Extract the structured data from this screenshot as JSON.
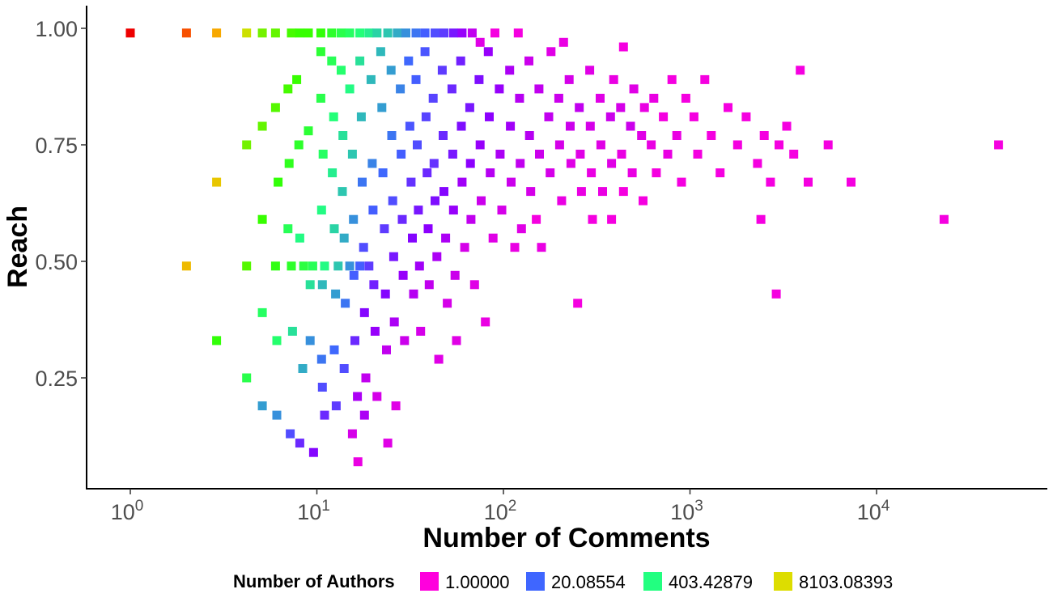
{
  "chart_data": {
    "type": "heatmap",
    "title": "",
    "xlabel": "Number of Comments",
    "ylabel": "Reach",
    "x_scale": "log10",
    "x_ticks": [
      1,
      10,
      100,
      1000,
      10000
    ],
    "x_tick_labels": [
      {
        "base": "10",
        "exp": "0"
      },
      {
        "base": "10",
        "exp": "1"
      },
      {
        "base": "10",
        "exp": "2"
      },
      {
        "base": "10",
        "exp": "3"
      },
      {
        "base": "10",
        "exp": "4"
      }
    ],
    "xlim": [
      0.6,
      90000
    ],
    "y_ticks": [
      0.25,
      0.5,
      0.75,
      1.0
    ],
    "y_tick_labels": [
      "0.25",
      "0.50",
      "0.75",
      "1.00"
    ],
    "ylim": [
      0.015,
      1.045
    ],
    "grid": false,
    "legend": {
      "title": "Number of Authors",
      "position": "bottom",
      "entries": [
        {
          "label": "1.00000",
          "color": "#ff00dd"
        },
        {
          "label": "20.08554",
          "color": "#3f66ff"
        },
        {
          "label": "403.42879",
          "color": "#22ff80"
        },
        {
          "label": "8103.08393",
          "color": "#dddd00"
        }
      ]
    },
    "color_ramp": [
      "#ff00dd",
      "#8800ff",
      "#3f66ff",
      "#22ff80",
      "#33ff00",
      "#dddd00",
      "#ff9900",
      "#ee0000"
    ],
    "bin_scale": "log(authors) 0-8",
    "bins": [
      [
        1,
        0.99,
        8.0
      ],
      [
        2,
        0.99,
        7.4
      ],
      [
        2.9,
        0.99,
        6.6
      ],
      [
        4.2,
        0.99,
        5.6
      ],
      [
        5.1,
        0.99,
        5.0
      ],
      [
        6,
        0.99,
        4.9
      ],
      [
        7.3,
        0.99,
        4.7
      ],
      [
        8.1,
        0.99,
        4.6
      ],
      [
        9,
        0.99,
        4.6
      ],
      [
        10.5,
        0.99,
        4.5
      ],
      [
        12,
        0.99,
        4.2
      ],
      [
        13.5,
        0.99,
        3.9
      ],
      [
        15,
        0.99,
        3.7
      ],
      [
        17,
        0.99,
        3.5
      ],
      [
        19,
        0.99,
        3.3
      ],
      [
        21,
        0.99,
        3.1
      ],
      [
        24,
        0.99,
        3.0
      ],
      [
        27,
        0.99,
        2.8
      ],
      [
        30,
        0.99,
        2.6
      ],
      [
        34,
        0.99,
        2.4
      ],
      [
        38,
        0.99,
        2.2
      ],
      [
        43,
        0.99,
        2.0
      ],
      [
        48,
        0.99,
        1.8
      ],
      [
        54,
        0.99,
        1.4
      ],
      [
        60,
        0.99,
        1.0
      ],
      [
        68,
        0.99,
        0.6
      ],
      [
        75,
        0.97,
        0.3
      ],
      [
        90,
        0.99,
        0.1
      ],
      [
        120,
        0.99,
        0.1
      ],
      [
        210,
        0.97,
        0.2
      ],
      [
        440,
        0.96,
        0.1
      ],
      [
        4.2,
        0.49,
        4.8
      ],
      [
        6,
        0.49,
        4.4
      ],
      [
        7.3,
        0.49,
        4.2
      ],
      [
        8.5,
        0.49,
        4.0
      ],
      [
        9.5,
        0.49,
        3.8
      ],
      [
        11,
        0.49,
        3.4
      ],
      [
        13,
        0.49,
        3.0
      ],
      [
        15,
        0.49,
        2.6
      ],
      [
        17,
        0.49,
        2.2
      ],
      [
        19,
        0.49,
        1.8
      ],
      [
        2,
        0.49,
        6.3
      ],
      [
        2.9,
        0.67,
        6.1
      ],
      [
        2.9,
        0.33,
        4.5
      ],
      [
        4.2,
        0.25,
        3.9
      ],
      [
        4.2,
        0.75,
        5.0
      ],
      [
        5.1,
        0.79,
        4.9
      ],
      [
        5.1,
        0.59,
        4.6
      ],
      [
        5.1,
        0.39,
        3.7
      ],
      [
        5.1,
        0.19,
        2.7
      ],
      [
        6,
        0.83,
        4.8
      ],
      [
        6.2,
        0.67,
        4.5
      ],
      [
        6.1,
        0.33,
        3.6
      ],
      [
        6.1,
        0.17,
        2.6
      ],
      [
        7,
        0.87,
        4.7
      ],
      [
        7.1,
        0.71,
        4.3
      ],
      [
        7,
        0.57,
        3.8
      ],
      [
        7.4,
        0.35,
        3.2
      ],
      [
        7.2,
        0.13,
        2.0
      ],
      [
        7.8,
        0.89,
        4.6
      ],
      [
        8,
        0.75,
        4.2
      ],
      [
        8.1,
        0.55,
        3.4
      ],
      [
        8.4,
        0.27,
        2.8
      ],
      [
        8.1,
        0.11,
        1.6
      ],
      [
        9,
        0.78,
        4.1
      ],
      [
        9.2,
        0.45,
        3.2
      ],
      [
        9.2,
        0.33,
        2.6
      ],
      [
        9.6,
        0.09,
        1.2
      ],
      [
        10.5,
        0.95,
        4.1
      ],
      [
        10.5,
        0.85,
        3.9
      ],
      [
        10.8,
        0.73,
        3.7
      ],
      [
        10.6,
        0.61,
        3.4
      ],
      [
        10.7,
        0.45,
        2.9
      ],
      [
        10.6,
        0.29,
        2.4
      ],
      [
        10.7,
        0.23,
        2.0
      ],
      [
        11,
        0.17,
        1.6
      ],
      [
        12,
        0.93,
        3.8
      ],
      [
        12.3,
        0.81,
        3.5
      ],
      [
        12.1,
        0.69,
        3.3
      ],
      [
        12.4,
        0.57,
        3.1
      ],
      [
        12.6,
        0.43,
        2.7
      ],
      [
        12.4,
        0.31,
        2.3
      ],
      [
        12.7,
        0.19,
        1.8
      ],
      [
        13.5,
        0.91,
        3.6
      ],
      [
        13.8,
        0.77,
        3.2
      ],
      [
        13.7,
        0.65,
        3.0
      ],
      [
        14,
        0.55,
        2.8
      ],
      [
        14.2,
        0.41,
        2.4
      ],
      [
        14,
        0.27,
        2.0
      ],
      [
        15.5,
        0.13,
        0.4
      ],
      [
        15,
        0.87,
        3.4
      ],
      [
        15.5,
        0.73,
        3.0
      ],
      [
        15.7,
        0.59,
        2.6
      ],
      [
        15.8,
        0.47,
        2.2
      ],
      [
        16,
        0.33,
        1.6
      ],
      [
        16.5,
        0.21,
        0.8
      ],
      [
        16.6,
        0.07,
        0.2
      ],
      [
        17,
        0.93,
        3.2
      ],
      [
        17.3,
        0.81,
        2.9
      ],
      [
        17.5,
        0.67,
        2.4
      ],
      [
        17.8,
        0.53,
        2.0
      ],
      [
        18,
        0.39,
        1.2
      ],
      [
        18.3,
        0.25,
        0.6
      ],
      [
        18,
        0.17,
        0.8
      ],
      [
        19.5,
        0.89,
        2.9
      ],
      [
        19.8,
        0.71,
        2.5
      ],
      [
        20,
        0.61,
        2.2
      ],
      [
        20.2,
        0.45,
        1.5
      ],
      [
        20.5,
        0.35,
        1.0
      ],
      [
        21,
        0.21,
        0.4
      ],
      [
        22,
        0.95,
        2.9
      ],
      [
        22.3,
        0.83,
        2.7
      ],
      [
        22.6,
        0.69,
        2.3
      ],
      [
        23,
        0.57,
        1.8
      ],
      [
        23.3,
        0.43,
        1.2
      ],
      [
        23.6,
        0.31,
        0.6
      ],
      [
        24,
        0.11,
        0.3
      ],
      [
        25,
        0.91,
        2.7
      ],
      [
        25.2,
        0.77,
        2.4
      ],
      [
        25.5,
        0.63,
        2.0
      ],
      [
        25.8,
        0.51,
        1.4
      ],
      [
        26,
        0.37,
        0.8
      ],
      [
        26.5,
        0.19,
        0.3
      ],
      [
        28,
        0.87,
        2.5
      ],
      [
        28.3,
        0.73,
        2.2
      ],
      [
        28.7,
        0.59,
        1.6
      ],
      [
        29,
        0.47,
        1.0
      ],
      [
        29.5,
        0.33,
        0.5
      ],
      [
        31,
        0.93,
        2.3
      ],
      [
        31.5,
        0.79,
        2.1
      ],
      [
        32,
        0.67,
        1.7
      ],
      [
        32.5,
        0.55,
        1.2
      ],
      [
        33,
        0.43,
        0.7
      ],
      [
        34,
        0.89,
        2.2
      ],
      [
        34.5,
        0.75,
        2.0
      ],
      [
        35,
        0.61,
        1.4
      ],
      [
        35.5,
        0.49,
        0.9
      ],
      [
        36,
        0.35,
        0.4
      ],
      [
        38,
        0.95,
        2.1
      ],
      [
        38.5,
        0.81,
        1.9
      ],
      [
        39,
        0.69,
        1.6
      ],
      [
        39.5,
        0.57,
        1.1
      ],
      [
        40,
        0.45,
        0.6
      ],
      [
        42,
        0.85,
        1.9
      ],
      [
        42.5,
        0.71,
        1.7
      ],
      [
        43,
        0.63,
        1.3
      ],
      [
        44,
        0.51,
        0.8
      ],
      [
        45,
        0.29,
        0.3
      ],
      [
        47,
        0.91,
        1.8
      ],
      [
        47.5,
        0.77,
        1.6
      ],
      [
        48,
        0.65,
        1.2
      ],
      [
        49,
        0.55,
        0.8
      ],
      [
        50,
        0.41,
        0.4
      ],
      [
        53,
        0.87,
        1.6
      ],
      [
        53.5,
        0.73,
        1.4
      ],
      [
        54,
        0.61,
        1.0
      ],
      [
        55,
        0.47,
        0.5
      ],
      [
        56,
        0.33,
        0.3
      ],
      [
        59,
        0.93,
        1.5
      ],
      [
        59.5,
        0.79,
        1.3
      ],
      [
        60,
        0.67,
        0.9
      ],
      [
        62,
        0.53,
        0.4
      ],
      [
        66,
        0.83,
        1.4
      ],
      [
        66.5,
        0.71,
        1.1
      ],
      [
        67,
        0.59,
        0.6
      ],
      [
        70,
        0.45,
        0.3
      ],
      [
        74,
        0.89,
        1.3
      ],
      [
        75,
        0.75,
        1.0
      ],
      [
        76,
        0.63,
        0.5
      ],
      [
        80,
        0.37,
        0.2
      ],
      [
        83,
        0.95,
        1.0
      ],
      [
        84,
        0.81,
        1.1
      ],
      [
        85,
        0.69,
        0.7
      ],
      [
        88,
        0.55,
        0.3
      ],
      [
        95,
        0.87,
        1.0
      ],
      [
        96,
        0.73,
        0.8
      ],
      [
        98,
        0.61,
        0.4
      ],
      [
        108,
        0.91,
        0.8
      ],
      [
        109,
        0.79,
        0.9
      ],
      [
        110,
        0.67,
        0.5
      ],
      [
        115,
        0.53,
        0.2
      ],
      [
        122,
        0.85,
        0.7
      ],
      [
        123,
        0.71,
        0.6
      ],
      [
        125,
        0.57,
        0.3
      ],
      [
        137,
        0.93,
        0.5
      ],
      [
        138,
        0.77,
        0.7
      ],
      [
        140,
        0.65,
        0.4
      ],
      [
        155,
        0.87,
        0.6
      ],
      [
        156,
        0.73,
        0.5
      ],
      [
        160,
        0.53,
        0.2
      ],
      [
        175,
        0.81,
        0.6
      ],
      [
        178,
        0.69,
        0.4
      ],
      [
        180,
        0.95,
        0.3
      ],
      [
        198,
        0.85,
        0.5
      ],
      [
        200,
        0.75,
        0.4
      ],
      [
        205,
        0.63,
        0.2
      ],
      [
        225,
        0.89,
        0.4
      ],
      [
        228,
        0.79,
        0.5
      ],
      [
        230,
        0.71,
        0.3
      ],
      [
        255,
        0.83,
        0.6
      ],
      [
        258,
        0.73,
        0.3
      ],
      [
        262,
        0.65,
        0.2
      ],
      [
        290,
        0.91,
        0.3
      ],
      [
        292,
        0.79,
        0.4
      ],
      [
        296,
        0.69,
        0.2
      ],
      [
        300,
        0.59,
        0.1
      ],
      [
        330,
        0.85,
        0.3
      ],
      [
        333,
        0.75,
        0.3
      ],
      [
        340,
        0.65,
        0.2
      ],
      [
        375,
        0.81,
        0.5
      ],
      [
        380,
        0.71,
        0.3
      ],
      [
        390,
        0.89,
        0.2
      ],
      [
        425,
        0.83,
        0.4
      ],
      [
        430,
        0.73,
        0.2
      ],
      [
        440,
        0.65,
        0.1
      ],
      [
        480,
        0.79,
        0.5
      ],
      [
        490,
        0.69,
        0.2
      ],
      [
        500,
        0.87,
        0.3
      ],
      [
        550,
        0.77,
        0.3
      ],
      [
        560,
        0.63,
        0.1
      ],
      [
        570,
        0.83,
        0.2
      ],
      [
        620,
        0.75,
        0.2
      ],
      [
        640,
        0.85,
        0.2
      ],
      [
        660,
        0.69,
        0.1
      ],
      [
        720,
        0.81,
        0.1
      ],
      [
        760,
        0.73,
        0.2
      ],
      [
        800,
        0.89,
        0.1
      ],
      [
        850,
        0.77,
        0.2
      ],
      [
        900,
        0.67,
        0.1
      ],
      [
        950,
        0.85,
        0.1
      ],
      [
        1050,
        0.81,
        0.1
      ],
      [
        1100,
        0.73,
        0.1
      ],
      [
        1200,
        0.89,
        0.1
      ],
      [
        1300,
        0.77,
        0.1
      ],
      [
        1450,
        0.69,
        0.1
      ],
      [
        1600,
        0.83,
        0.1
      ],
      [
        1800,
        0.75,
        0.1
      ],
      [
        2000,
        0.81,
        0.1
      ],
      [
        2300,
        0.71,
        0.1
      ],
      [
        2500,
        0.77,
        0.1
      ],
      [
        2700,
        0.67,
        0.1
      ],
      [
        3000,
        0.75,
        0.1
      ],
      [
        3300,
        0.79,
        0.1
      ],
      [
        3600,
        0.73,
        0.1
      ],
      [
        3900,
        0.91,
        0.1
      ],
      [
        4300,
        0.67,
        0.1
      ],
      [
        5500,
        0.75,
        0.1
      ],
      [
        7300,
        0.67,
        0.1
      ],
      [
        2400,
        0.59,
        0.1
      ],
      [
        2900,
        0.43,
        0.1
      ],
      [
        23000,
        0.59,
        0.1
      ],
      [
        45000,
        0.75,
        0.1
      ],
      [
        250,
        0.41,
        0.1
      ],
      [
        380,
        0.59,
        0.1
      ],
      [
        150,
        0.59,
        0.1
      ]
    ]
  }
}
